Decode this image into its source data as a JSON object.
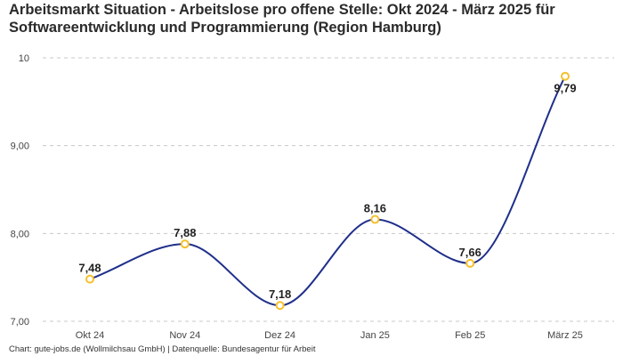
{
  "chart_data": {
    "type": "line",
    "title_lines": [
      "Arbeitsmarkt Situation - Arbeitslose pro offene Stelle: Okt 2024 - März 2025 für",
      "Softwareentwicklung und Programmierung (Region Hamburg)"
    ],
    "categories": [
      "Okt 24",
      "Nov 24",
      "Dez 24",
      "Jan 25",
      "Feb 25",
      "März 25"
    ],
    "series": [
      {
        "name": "Arbeitslose pro offene Stelle",
        "values": [
          7.48,
          7.88,
          7.18,
          8.16,
          7.66,
          9.79
        ],
        "value_labels": [
          "7,48",
          "7,88",
          "7,18",
          "8,16",
          "7,66",
          "9,79"
        ]
      }
    ],
    "ylim": [
      7,
      10
    ],
    "yticks": [
      7,
      8,
      9,
      10
    ],
    "ytick_labels": [
      "7,00",
      "8,00",
      "9,00",
      "10"
    ],
    "xlabel": "",
    "ylabel": "",
    "grid": true,
    "colors": {
      "line": "#1f2f8a",
      "marker_stroke": "#f5c02b",
      "marker_fill": "#ffffff",
      "grid": "#c8c8c8"
    }
  },
  "footer": {
    "credit": "Chart: gute-jobs.de (Wollmilchsau GmbH) | Datenquelle: Bundesagentur für Arbeit"
  }
}
